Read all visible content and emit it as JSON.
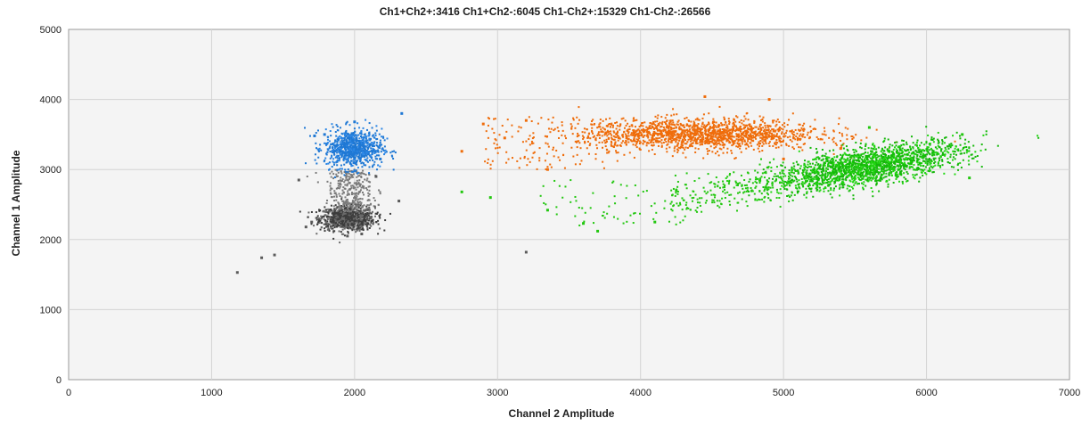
{
  "chart_data": {
    "type": "scatter",
    "title": "Ch1+Ch2+:3416  Ch1+Ch2-:6045  Ch1-Ch2+:15329  Ch1-Ch2-:26566",
    "xlabel": "Channel 2 Amplitude",
    "ylabel": "Channel 1 Amplitude",
    "xlim": [
      0,
      7000
    ],
    "ylim": [
      0,
      5000
    ],
    "xticks": [
      0,
      1000,
      2000,
      3000,
      4000,
      5000,
      6000,
      7000
    ],
    "yticks": [
      0,
      1000,
      2000,
      3000,
      4000,
      5000
    ],
    "grid": true,
    "series": [
      {
        "color": "#5a5a5a",
        "center": [
          1950,
          2300
        ],
        "values": [
          [
            1180,
            1530
          ],
          [
            1350,
            1740
          ],
          [
            1440,
            1780
          ],
          [
            1610,
            2850
          ],
          [
            1660,
            2180
          ],
          [
            1700,
            2250
          ],
          [
            1950,
            2050
          ],
          [
            2050,
            2080
          ],
          [
            2150,
            2900
          ],
          [
            2310,
            2550
          ],
          [
            3200,
            1820
          ]
        ]
      },
      {
        "color": "#1f78d4",
        "center": [
          1990,
          3300
        ],
        "values": [
          [
            1720,
            3480
          ],
          [
            1790,
            3500
          ],
          [
            2000,
            3680
          ],
          [
            2180,
            3150
          ],
          [
            2330,
            3800
          ]
        ]
      },
      {
        "color": "#ef6c0a",
        "center": [
          4400,
          3500
        ],
        "values": [
          [
            2750,
            3260
          ],
          [
            2900,
            3650
          ],
          [
            3050,
            3450
          ],
          [
            3200,
            3700
          ],
          [
            3350,
            3000
          ],
          [
            4450,
            4040
          ],
          [
            4900,
            4000
          ],
          [
            5000,
            3150
          ],
          [
            5400,
            3300
          ]
        ]
      },
      {
        "color": "#22c70f",
        "center": [
          5600,
          3100
        ],
        "values": [
          [
            2750,
            2680
          ],
          [
            2950,
            2600
          ],
          [
            3350,
            2420
          ],
          [
            3600,
            2230
          ],
          [
            3700,
            2120
          ],
          [
            4100,
            2250
          ],
          [
            4250,
            2700
          ],
          [
            5600,
            3600
          ],
          [
            6300,
            2880
          ],
          [
            6250,
            3500
          ]
        ]
      }
    ]
  }
}
